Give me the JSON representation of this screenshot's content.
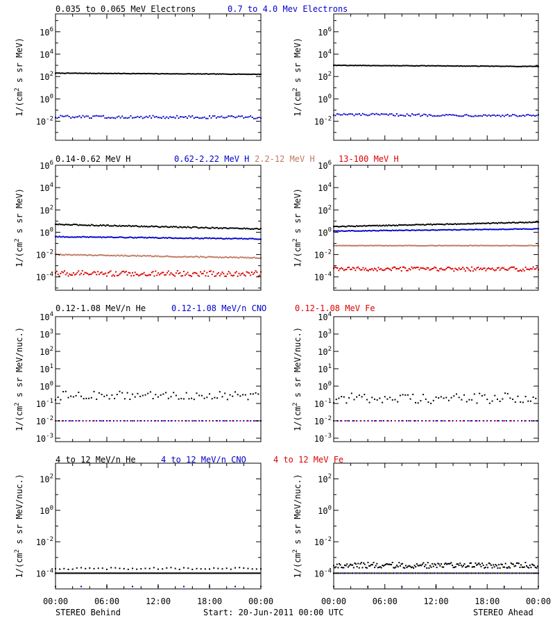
{
  "footer": {
    "left": "STEREO Behind",
    "center": "Start: 20-Jun-2011 00:00 UTC",
    "right": "STEREO Ahead"
  },
  "x_tick_labels": [
    "00:00",
    "06:00",
    "12:00",
    "18:00",
    "00:00"
  ],
  "colors": {
    "black": "#000000",
    "blue": "#0000cc",
    "tan": "#c07860",
    "red": "#dd0000"
  },
  "chart_data": [
    {
      "id": "electrons",
      "type": "scatter",
      "ylabel": "1/(cm^2 s sr MeV)",
      "ylog": true,
      "yrange_log10": [
        -3.7,
        7.6
      ],
      "ytick_exponents": [
        -2,
        0,
        2,
        4,
        6
      ],
      "x_hours": [
        0,
        24
      ],
      "legend": [
        {
          "text": "0.035 to 0.065 MeV Electrons",
          "color": "black"
        },
        {
          "text": "0.7 to 4.0 Mev Electrons",
          "color": "blue"
        }
      ],
      "behind": [
        {
          "color": "black",
          "log10": [
            2.3,
            2.2
          ],
          "jitter": 0.02,
          "step": 0.15
        },
        {
          "color": "blue",
          "log10": [
            -1.6,
            -1.65
          ],
          "jitter": 0.12,
          "step": 0.2
        }
      ],
      "ahead": [
        {
          "color": "black",
          "log10": [
            3.0,
            2.9
          ],
          "jitter": 0.02,
          "step": 0.15
        },
        {
          "color": "blue",
          "log10": [
            -1.4,
            -1.5
          ],
          "jitter": 0.1,
          "step": 0.2
        }
      ]
    },
    {
      "id": "protons",
      "type": "scatter",
      "ylabel": "1/(cm^2 s sr MeV)",
      "ylog": true,
      "yrange_log10": [
        -5.2,
        6.0
      ],
      "ytick_exponents": [
        -4,
        -2,
        0,
        2,
        4,
        6
      ],
      "x_hours": [
        0,
        24
      ],
      "legend": [
        {
          "text": "0.14-0.62 MeV H",
          "color": "black"
        },
        {
          "text": "0.62-2.22 MeV H",
          "color": "blue"
        },
        {
          "text": "2.2-12 MeV H",
          "color": "tan"
        },
        {
          "text": "13-100 MeV H",
          "color": "red"
        }
      ],
      "behind": [
        {
          "color": "black",
          "log10": [
            0.7,
            0.3
          ],
          "jitter": 0.05,
          "step": 0.15
        },
        {
          "color": "blue",
          "log10": [
            -0.4,
            -0.6
          ],
          "jitter": 0.04,
          "step": 0.15
        },
        {
          "color": "tan",
          "log10": [
            -2.0,
            -2.3
          ],
          "jitter": 0.05,
          "step": 0.15
        },
        {
          "color": "red",
          "log10": [
            -3.7,
            -3.7
          ],
          "jitter": 0.25,
          "step": 0.15
        }
      ],
      "ahead": [
        {
          "color": "black",
          "log10": [
            0.5,
            0.9
          ],
          "jitter": 0.04,
          "step": 0.15
        },
        {
          "color": "blue",
          "log10": [
            0.1,
            0.3
          ],
          "jitter": 0.03,
          "step": 0.15
        },
        {
          "color": "tan",
          "log10": [
            -1.2,
            -1.2
          ],
          "jitter": 0.02,
          "step": 0.15
        },
        {
          "color": "red",
          "log10": [
            -3.3,
            -3.3
          ],
          "jitter": 0.18,
          "step": 0.15
        }
      ]
    },
    {
      "id": "heavy-low",
      "type": "scatter",
      "ylabel": "1/(cm^2 s sr MeV/nuc.)",
      "ylog": true,
      "yrange_log10": [
        -3.2,
        4.0
      ],
      "ytick_exponents": [
        -3,
        -2,
        -1,
        0,
        1,
        2,
        3,
        4
      ],
      "x_hours": [
        0,
        24
      ],
      "legend": [
        {
          "text": "0.12-1.08 MeV/n He",
          "color": "black"
        },
        {
          "text": "0.12-1.08 MeV/n CNO",
          "color": "blue"
        },
        {
          "text": "0.12-1.08 MeV Fe",
          "color": "red"
        }
      ],
      "behind": [
        {
          "color": "black",
          "log10": [
            -0.55,
            -0.55
          ],
          "jitter": 0.25,
          "step": 0.3
        },
        {
          "color": "blue",
          "log10": [
            -2.0,
            -2.0
          ],
          "jitter": 0.0,
          "step": 0.4
        },
        {
          "color": "red",
          "log10": [
            -2.0,
            -2.0
          ],
          "jitter": 0.0,
          "step": 0.9
        }
      ],
      "ahead": [
        {
          "color": "black",
          "log10": [
            -0.7,
            -0.7
          ],
          "jitter": 0.3,
          "step": 0.3
        },
        {
          "color": "blue",
          "log10": [
            -2.0,
            -2.0
          ],
          "jitter": 0.0,
          "step": 0.45
        },
        {
          "color": "red",
          "log10": [
            -2.0,
            -2.0
          ],
          "jitter": 0.0,
          "step": 0.8
        }
      ]
    },
    {
      "id": "heavy-high",
      "type": "scatter",
      "ylabel": "1/(cm^2 s sr MeV/nuc.)",
      "ylog": true,
      "yrange_log10": [
        -5.0,
        3.0
      ],
      "ytick_exponents": [
        -4,
        -2,
        0,
        2
      ],
      "x_hours": [
        0,
        24
      ],
      "legend": [
        {
          "text": "4 to 12 MeV/n He",
          "color": "black"
        },
        {
          "text": "4 to 12 MeV/n CNO",
          "color": "blue"
        },
        {
          "text": "4 to 12 MeV Fe",
          "color": "red"
        }
      ],
      "behind": [
        {
          "color": "black",
          "log10": [
            -4.0,
            -4.0
          ],
          "jitter": 0.0,
          "step": 0.12
        },
        {
          "color": "black",
          "log10": [
            -3.7,
            -3.7
          ],
          "jitter": 0.06,
          "step": 0.5
        },
        {
          "color": "blue",
          "log10": [
            -4.85,
            -4.85
          ],
          "jitter": 0.0,
          "step": 3.0
        }
      ],
      "ahead": [
        {
          "color": "black",
          "log10": [
            -3.5,
            -3.5
          ],
          "jitter": 0.18,
          "step": 0.13
        },
        {
          "color": "black",
          "log10": [
            -4.0,
            -4.0
          ],
          "jitter": 0.0,
          "step": 0.2
        },
        {
          "color": "blue",
          "log10": [
            -4.0,
            -4.0
          ],
          "jitter": 0.0,
          "step": 1.2
        },
        {
          "color": "blue",
          "log10": [
            -4.85,
            -4.85
          ],
          "jitter": 0.0,
          "step": 4.0
        }
      ]
    }
  ]
}
